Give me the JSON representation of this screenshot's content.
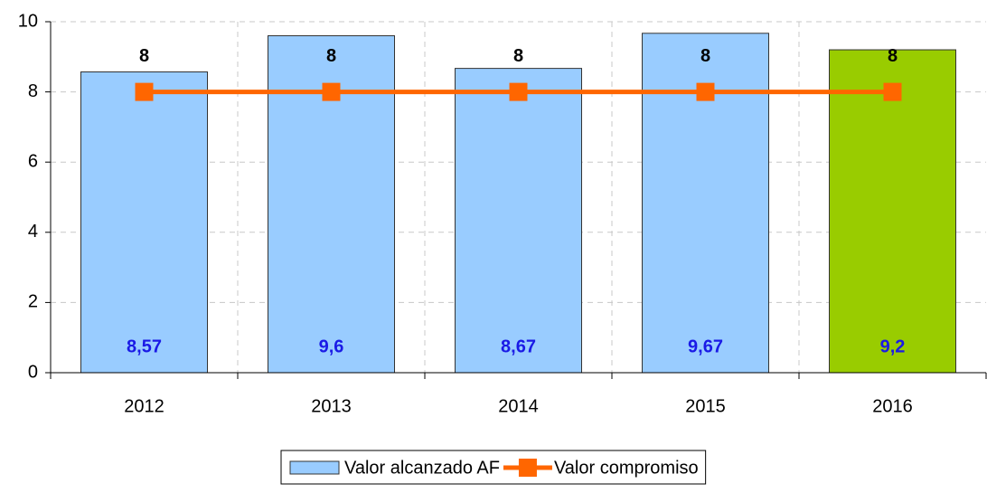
{
  "chart_data": {
    "type": "bar",
    "categories": [
      "2012",
      "2013",
      "2014",
      "2015",
      "2016"
    ],
    "series": [
      {
        "name": "Valor alcanzado AF",
        "type": "bar",
        "color": "#99ccff",
        "colors": [
          "#99ccff",
          "#99ccff",
          "#99ccff",
          "#99ccff",
          "#99cc00"
        ],
        "values": [
          8.57,
          9.6,
          8.67,
          9.67,
          9.2
        ],
        "value_labels": [
          "8,57",
          "9,6",
          "8,67",
          "9,67",
          "9,2"
        ],
        "label_color": "#1a1ae6"
      },
      {
        "name": "Valor compromiso",
        "type": "line",
        "color": "#ff6600",
        "values": [
          8,
          8,
          8,
          8,
          8
        ],
        "label_color": "#000000"
      }
    ],
    "ylim": [
      0,
      10
    ],
    "yticks": [
      0,
      2,
      4,
      6,
      8,
      10
    ],
    "grid": true,
    "legend": "bottom"
  }
}
